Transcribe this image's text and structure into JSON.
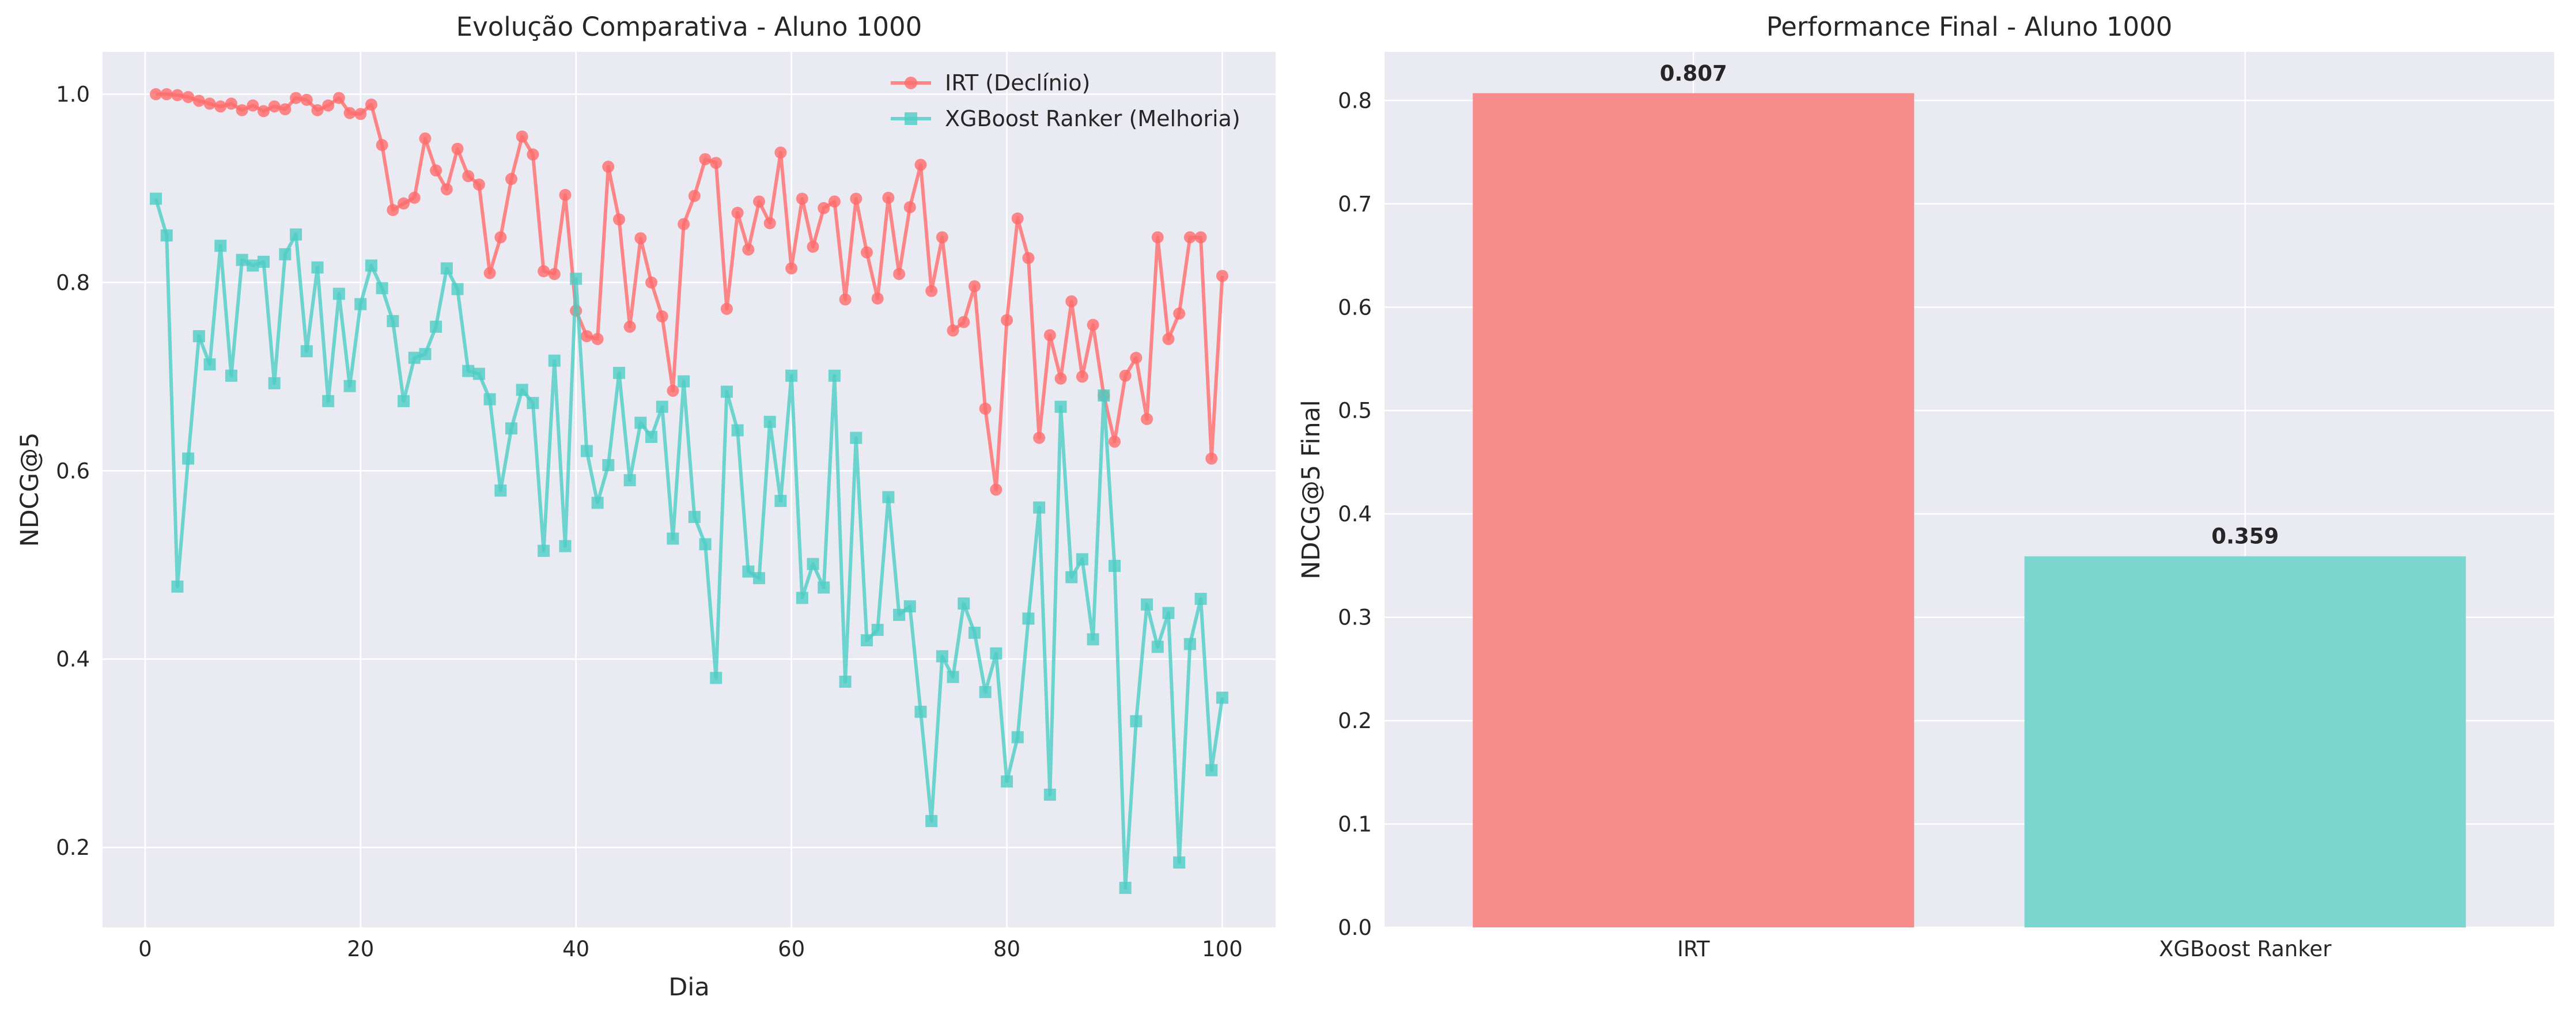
{
  "chart_data": [
    {
      "type": "line",
      "title": "Evolução Comparativa - Aluno 1000",
      "xlabel": "Dia",
      "ylabel": "NDCG@5",
      "xlim": [
        -3.95,
        104.95
      ],
      "ylim": [
        0.115,
        1.045
      ],
      "xticks": [
        0,
        20,
        40,
        60,
        80,
        100
      ],
      "yticks": [
        0.2,
        0.4,
        0.6,
        0.8,
        1.0
      ],
      "grid": true,
      "legend": "top-right",
      "x": [
        1,
        2,
        3,
        4,
        5,
        6,
        7,
        8,
        9,
        10,
        11,
        12,
        13,
        14,
        15,
        16,
        17,
        18,
        19,
        20,
        21,
        22,
        23,
        24,
        25,
        26,
        27,
        28,
        29,
        30,
        31,
        32,
        33,
        34,
        35,
        36,
        37,
        38,
        39,
        40,
        41,
        42,
        43,
        44,
        45,
        46,
        47,
        48,
        49,
        50,
        51,
        52,
        53,
        54,
        55,
        56,
        57,
        58,
        59,
        60,
        61,
        62,
        63,
        64,
        65,
        66,
        67,
        68,
        69,
        70,
        71,
        72,
        73,
        74,
        75,
        76,
        77,
        78,
        79,
        80,
        81,
        82,
        83,
        84,
        85,
        86,
        87,
        88,
        89,
        90,
        91,
        92,
        93,
        94,
        95,
        96,
        97,
        98,
        99,
        100
      ],
      "series": [
        {
          "name": "IRT (Declínio)",
          "color": "#ff6b6b",
          "marker": "circle",
          "values": [
            1.0,
            1.0,
            0.999,
            0.997,
            0.993,
            0.99,
            0.987,
            0.99,
            0.983,
            0.988,
            0.982,
            0.987,
            0.984,
            0.996,
            0.994,
            0.983,
            0.988,
            0.996,
            0.98,
            0.979,
            0.989,
            0.946,
            0.877,
            0.884,
            0.89,
            0.953,
            0.919,
            0.899,
            0.942,
            0.913,
            0.904,
            0.81,
            0.848,
            0.91,
            0.955,
            0.936,
            0.812,
            0.809,
            0.893,
            0.77,
            0.743,
            0.74,
            0.923,
            0.867,
            0.753,
            0.847,
            0.8,
            0.764,
            0.685,
            0.862,
            0.892,
            0.931,
            0.927,
            0.772,
            0.874,
            0.835,
            0.886,
            0.863,
            0.938,
            0.815,
            0.889,
            0.838,
            0.879,
            0.886,
            0.782,
            0.889,
            0.832,
            0.783,
            0.89,
            0.809,
            0.88,
            0.925,
            0.791,
            0.848,
            0.749,
            0.758,
            0.796,
            0.666,
            0.58,
            0.76,
            0.868,
            0.826,
            0.635,
            0.744,
            0.698,
            0.78,
            0.7,
            0.755,
            0.68,
            0.631,
            0.701,
            0.72,
            0.655,
            0.848,
            0.74,
            0.767,
            0.848,
            0.848,
            0.613,
            0.807
          ]
        },
        {
          "name": "XGBoost Ranker (Melhoria)",
          "color": "#4ecdc4",
          "marker": "square",
          "values": [
            0.889,
            0.85,
            0.477,
            0.613,
            0.743,
            0.713,
            0.839,
            0.701,
            0.824,
            0.818,
            0.822,
            0.693,
            0.83,
            0.851,
            0.727,
            0.816,
            0.674,
            0.788,
            0.69,
            0.777,
            0.818,
            0.794,
            0.759,
            0.674,
            0.72,
            0.724,
            0.753,
            0.815,
            0.793,
            0.706,
            0.703,
            0.676,
            0.579,
            0.645,
            0.686,
            0.672,
            0.515,
            0.717,
            0.52,
            0.804,
            0.621,
            0.566,
            0.606,
            0.704,
            0.59,
            0.651,
            0.636,
            0.668,
            0.528,
            0.695,
            0.551,
            0.522,
            0.38,
            0.684,
            0.643,
            0.493,
            0.486,
            0.652,
            0.568,
            0.701,
            0.465,
            0.501,
            0.476,
            0.701,
            0.376,
            0.635,
            0.42,
            0.431,
            0.572,
            0.447,
            0.456,
            0.344,
            0.228,
            0.403,
            0.381,
            0.459,
            0.428,
            0.365,
            0.406,
            0.27,
            0.317,
            0.443,
            0.561,
            0.256,
            0.668,
            0.487,
            0.506,
            0.421,
            0.68,
            0.499,
            0.157,
            0.334,
            0.458,
            0.413,
            0.449,
            0.184,
            0.416,
            0.464,
            0.282,
            0.359
          ]
        }
      ]
    },
    {
      "type": "bar",
      "title": "Performance Final - Aluno 1000",
      "xlabel": "",
      "ylabel": "NDCG@5 Final",
      "ylim": [
        0,
        0.847
      ],
      "yticks": [
        0.0,
        0.1,
        0.2,
        0.3,
        0.4,
        0.5,
        0.6,
        0.7,
        0.8
      ],
      "grid": true,
      "categories": [
        "IRT",
        "XGBoost Ranker"
      ],
      "values": [
        0.807,
        0.359
      ],
      "value_labels": [
        "0.807",
        "0.359"
      ],
      "colors": [
        "#f68c8c",
        "#7cd6d0"
      ]
    }
  ]
}
